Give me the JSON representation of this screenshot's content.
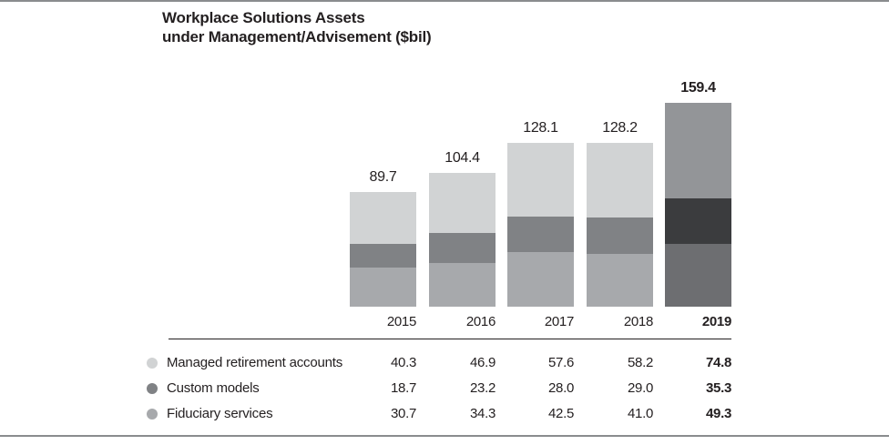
{
  "chart_data": {
    "type": "bar",
    "variant": "stacked",
    "title_line1": "Workplace Solutions Assets",
    "title_line2": "under Management/Advisement ($bil)",
    "categories": [
      "2015",
      "2016",
      "2017",
      "2018",
      "2019"
    ],
    "totals": [
      "89.7",
      "104.4",
      "128.1",
      "128.2",
      "159.4"
    ],
    "series": [
      {
        "name": "Managed retirement accounts",
        "values": [
          "40.3",
          "46.9",
          "57.6",
          "58.2",
          "74.8"
        ],
        "color": "#d1d3d4",
        "highlight_color": "#939598"
      },
      {
        "name": "Custom models",
        "values": [
          "18.7",
          "23.2",
          "28.0",
          "29.0",
          "35.3"
        ],
        "color": "#808285",
        "highlight_color": "#3b3c3e"
      },
      {
        "name": "Fiduciary services",
        "values": [
          "30.7",
          "34.3",
          "42.5",
          "41.0",
          "49.3"
        ],
        "color": "#a7a9ac",
        "highlight_color": "#6d6e71"
      }
    ],
    "highlight_category": "2019",
    "legend_position": "bottom-table",
    "grid": "off",
    "axis_lines": "none"
  },
  "colors": {
    "page_rule": "#8a8c8e",
    "table_rule": "#231f20",
    "text": "#231f20"
  }
}
